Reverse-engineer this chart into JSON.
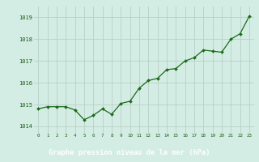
{
  "x": [
    0,
    1,
    2,
    3,
    4,
    5,
    6,
    7,
    8,
    9,
    10,
    11,
    12,
    13,
    14,
    15,
    16,
    17,
    18,
    19,
    20,
    21,
    22,
    23
  ],
  "y": [
    1014.8,
    1014.9,
    1014.9,
    1014.9,
    1014.75,
    1014.3,
    1014.5,
    1014.8,
    1014.55,
    1015.05,
    1015.15,
    1015.75,
    1016.1,
    1016.2,
    1016.6,
    1016.65,
    1017.0,
    1017.15,
    1017.5,
    1017.45,
    1017.4,
    1018.0,
    1018.25,
    1019.05
  ],
  "line_color": "#1a6b1a",
  "marker_color": "#1a6b1a",
  "bg_color": "#d4ede4",
  "grid_color": "#b8cfc8",
  "title": "Graphe pression niveau de la mer (hPa)",
  "title_bg_color": "#2a6b2a",
  "title_text_color": "#ffffff",
  "tick_color": "#1a5c1a",
  "ylim_min": 1013.7,
  "ylim_max": 1019.5,
  "xlim_min": -0.5,
  "xlim_max": 23.5,
  "yticks": [
    1014,
    1015,
    1016,
    1017,
    1018,
    1019
  ],
  "xticks": [
    0,
    1,
    2,
    3,
    4,
    5,
    6,
    7,
    8,
    9,
    10,
    11,
    12,
    13,
    14,
    15,
    16,
    17,
    18,
    19,
    20,
    21,
    22,
    23
  ]
}
